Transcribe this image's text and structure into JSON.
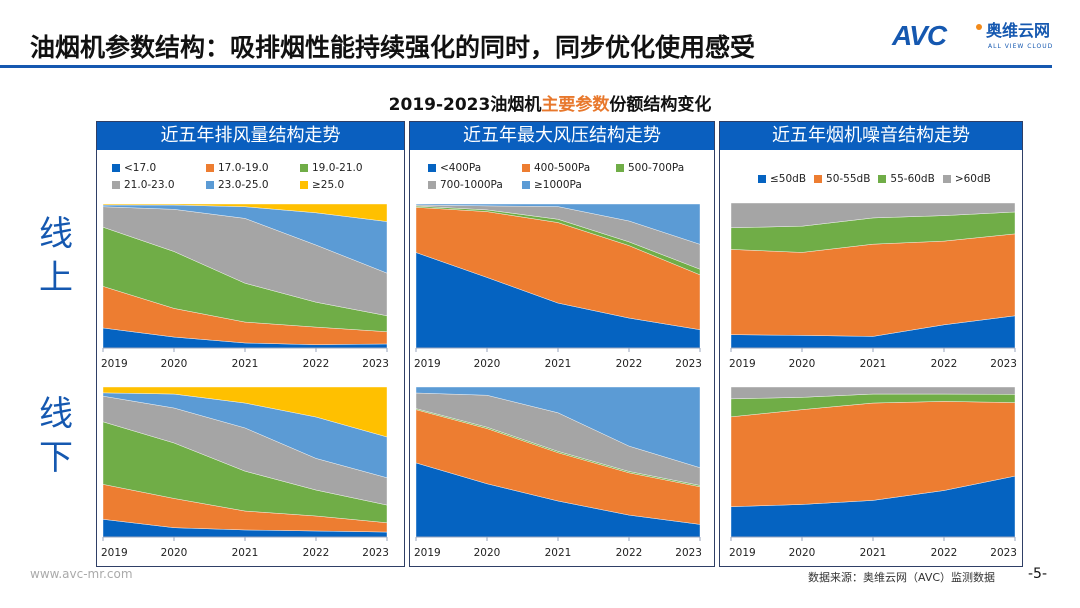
{
  "header": {
    "title": "油烟机参数结构：吸排烟性能持续强化的同时，同步优化使用感受",
    "logo": {
      "mark": "AVC",
      "name_cn": "奥维云网",
      "name_en": "ALL VIEW CLOUD"
    }
  },
  "subtitle": {
    "part1": "2019-2023油烟机",
    "highlight": "主要参数",
    "part2": "份额结构变化"
  },
  "row_labels": {
    "online": "线上",
    "offline": "线下"
  },
  "colors": {
    "blue": "#0563c1",
    "orange": "#ed7d31",
    "green": "#70ad47",
    "gray": "#a5a5a5",
    "lightblue": "#5b9bd5",
    "yellow": "#ffc000",
    "accent": "#1558b0"
  },
  "footer": {
    "url": "www.avc-mr.com",
    "source": "数据来源：奥维云网（AVC）监测数据",
    "page": "-5-"
  },
  "chart_data": [
    {
      "panel": "近五年排风量结构走势",
      "row": "线上",
      "type": "area",
      "stacked": "percent",
      "categories": [
        "2019",
        "2020",
        "2021",
        "2022",
        "2023"
      ],
      "series": [
        {
          "name": "<17.0",
          "color": "#0563c1",
          "values": [
            13.9,
            7.6,
            3.5,
            2.3,
            2.8
          ]
        },
        {
          "name": "17.0-19.0",
          "color": "#ed7d31",
          "values": [
            28.9,
            19.9,
            14.5,
            12.2,
            8.5
          ]
        },
        {
          "name": "19.0-21.0",
          "color": "#70ad47",
          "values": [
            41.1,
            39.5,
            27.0,
            17.3,
            11.1
          ]
        },
        {
          "name": "21.0-23.0",
          "color": "#a5a5a5",
          "values": [
            14.2,
            29.3,
            45.0,
            39.7,
            29.6
          ]
        },
        {
          "name": "23.0-25.0",
          "color": "#5b9bd5",
          "values": [
            1.2,
            3.0,
            8.1,
            22.4,
            35.8
          ]
        },
        {
          "name": "≥25.0",
          "color": "#ffc000",
          "values": [
            0.7,
            0.7,
            1.9,
            6.1,
            12.2
          ]
        }
      ]
    },
    {
      "panel": "近五年最大风压结构走势",
      "row": "线上",
      "type": "area",
      "stacked": "percent",
      "categories": [
        "2019",
        "2020",
        "2021",
        "2022",
        "2023"
      ],
      "series": [
        {
          "name": "<400Pa",
          "color": "#0563c1",
          "values": [
            66.3,
            49.0,
            31.2,
            20.8,
            12.7
          ]
        },
        {
          "name": "400-500Pa",
          "color": "#ed7d31",
          "values": [
            31.4,
            45.7,
            55.9,
            50.3,
            38.1
          ]
        },
        {
          "name": "500-700Pa",
          "color": "#70ad47",
          "values": [
            0.9,
            1.2,
            2.3,
            2.6,
            3.9
          ]
        },
        {
          "name": "700-1000Pa",
          "color": "#a5a5a5",
          "values": [
            0.7,
            2.8,
            8.8,
            14.5,
            17.3
          ]
        },
        {
          "name": "≥1000Pa",
          "color": "#5b9bd5",
          "values": [
            0.7,
            1.3,
            1.8,
            11.8,
            28.0
          ]
        }
      ]
    },
    {
      "panel": "近五年烟机噪音结构走势",
      "row": "线上",
      "type": "area",
      "stacked": "percent",
      "categories": [
        "2019",
        "2020",
        "2021",
        "2022",
        "2023"
      ],
      "series": [
        {
          "name": "≤50dB",
          "color": "#0563c1",
          "values": [
            9.2,
            8.7,
            8.0,
            16.0,
            22.2
          ]
        },
        {
          "name": "50-55dB",
          "color": "#ed7d31",
          "values": [
            58.8,
            57.2,
            63.6,
            57.7,
            56.5
          ]
        },
        {
          "name": "55-60dB",
          "color": "#70ad47",
          "values": [
            14.9,
            18.1,
            18.1,
            17.6,
            15.1
          ]
        },
        {
          "name": ">60dB",
          "color": "#a5a5a5",
          "values": [
            17.1,
            16.0,
            10.3,
            8.7,
            6.2
          ]
        }
      ]
    },
    {
      "panel": "近五年排风量结构走势",
      "row": "线下",
      "type": "area",
      "stacked": "percent",
      "categories": [
        "2019",
        "2020",
        "2021",
        "2022",
        "2023"
      ],
      "series": [
        {
          "name": "<17.0",
          "color": "#0563c1",
          "values": [
            11.8,
            6.2,
            4.7,
            4.0,
            3.3
          ]
        },
        {
          "name": "17.0-19.0",
          "color": "#ed7d31",
          "values": [
            23.3,
            19.5,
            12.6,
            10.0,
            6.2
          ]
        },
        {
          "name": "19.0-21.0",
          "color": "#70ad47",
          "values": [
            41.7,
            37.0,
            26.6,
            17.3,
            11.8
          ]
        },
        {
          "name": "21.0-23.0",
          "color": "#a5a5a5",
          "values": [
            17.1,
            23.3,
            28.8,
            21.1,
            18.2
          ]
        },
        {
          "name": "23.0-25.0",
          "color": "#5b9bd5",
          "values": [
            2.2,
            9.3,
            16.6,
            27.6,
            27.2
          ]
        },
        {
          "name": "≥25.0",
          "color": "#ffc000",
          "values": [
            3.9,
            4.7,
            10.7,
            20.0,
            33.3
          ]
        }
      ]
    },
    {
      "panel": "近五年最大风压结构走势",
      "row": "线下",
      "type": "area",
      "stacked": "percent",
      "categories": [
        "2019",
        "2020",
        "2021",
        "2022",
        "2023"
      ],
      "series": [
        {
          "name": "<400Pa",
          "color": "#0563c1",
          "values": [
            49.4,
            35.5,
            24.0,
            14.6,
            8.4
          ]
        },
        {
          "name": "400-500Pa",
          "color": "#ed7d31",
          "values": [
            35.5,
            36.8,
            32.2,
            28.2,
            25.1
          ]
        },
        {
          "name": "500-700Pa",
          "color": "#70ad47",
          "values": [
            0.7,
            0.9,
            0.9,
            0.9,
            0.9
          ]
        },
        {
          "name": "700-1000Pa",
          "color": "#a5a5a5",
          "values": [
            10.4,
            21.3,
            25.7,
            16.9,
            11.8
          ]
        },
        {
          "name": "≥1000Pa",
          "color": "#5b9bd5",
          "values": [
            4.0,
            5.5,
            17.2,
            39.4,
            53.8
          ]
        }
      ]
    },
    {
      "panel": "近五年烟机噪音结构走势",
      "row": "线下",
      "type": "area",
      "stacked": "percent",
      "categories": [
        "2019",
        "2020",
        "2021",
        "2022",
        "2023"
      ],
      "series": [
        {
          "name": "≤50dB",
          "color": "#0563c1",
          "values": [
            20.2,
            21.7,
            24.4,
            31.0,
            40.6
          ]
        },
        {
          "name": "50-55dB",
          "color": "#ed7d31",
          "values": [
            59.9,
            63.2,
            64.9,
            59.4,
            49.0
          ]
        },
        {
          "name": "55-60dB",
          "color": "#70ad47",
          "values": [
            12.0,
            8.2,
            6.0,
            4.9,
            5.5
          ]
        },
        {
          "name": ">60dB",
          "color": "#a5a5a5",
          "values": [
            7.9,
            6.9,
            4.7,
            4.7,
            4.9
          ]
        }
      ]
    }
  ]
}
